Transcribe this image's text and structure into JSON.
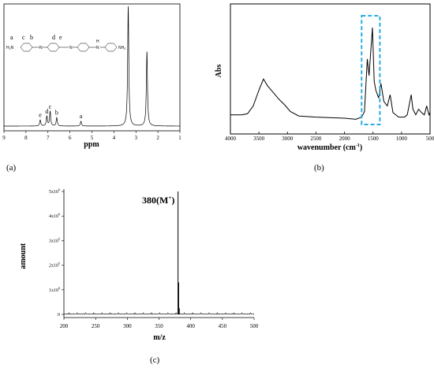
{
  "chart_data": [
    {
      "panel": "(a)",
      "type": "line",
      "xlabel": "ppm",
      "ylabel": "",
      "xlim": [
        9,
        1
      ],
      "x_reversed": true,
      "x_ticks": [
        "9",
        "8",
        "7",
        "6",
        "5",
        "4",
        "3",
        "2",
        "1"
      ],
      "peaks": [
        {
          "ppm": 7.35,
          "height": 0.05,
          "label": "e"
        },
        {
          "ppm": 7.05,
          "height": 0.08,
          "label": "d"
        },
        {
          "ppm": 6.9,
          "height": 0.12,
          "label": "c"
        },
        {
          "ppm": 6.6,
          "height": 0.07,
          "label": "b"
        },
        {
          "ppm": 5.5,
          "height": 0.04,
          "label": "a"
        },
        {
          "ppm": 3.35,
          "height": 1.0,
          "label": ""
        },
        {
          "ppm": 2.5,
          "height": 0.62,
          "label": ""
        }
      ],
      "structure": {
        "proton_labels": [
          "a",
          "c",
          "b",
          "d",
          "e"
        ],
        "atoms": [
          "H",
          "N",
          "N",
          "N",
          "H",
          "N",
          "NH",
          "NH"
        ],
        "subscripts": [
          "2",
          "2"
        ]
      }
    },
    {
      "panel": "(b)",
      "type": "line",
      "xlabel": "wavenumber (cm",
      "xlabel_sup": "-1",
      "xlabel_end": ")",
      "ylabel": "Abs",
      "xlim": [
        4000,
        500
      ],
      "x_reversed": true,
      "x_ticks": [
        "4000",
        "3500",
        "3000",
        "2500",
        "2000",
        "1500",
        "1000",
        "500"
      ],
      "spectrum": [
        [
          4000,
          0.2
        ],
        [
          3800,
          0.2
        ],
        [
          3700,
          0.21
        ],
        [
          3600,
          0.28
        ],
        [
          3500,
          0.42
        ],
        [
          3420,
          0.52
        ],
        [
          3350,
          0.46
        ],
        [
          3250,
          0.4
        ],
        [
          3150,
          0.34
        ],
        [
          3050,
          0.29
        ],
        [
          2950,
          0.23
        ],
        [
          2800,
          0.19
        ],
        [
          2500,
          0.18
        ],
        [
          2000,
          0.17
        ],
        [
          1800,
          0.16
        ],
        [
          1700,
          0.18
        ],
        [
          1650,
          0.23
        ],
        [
          1600,
          0.7
        ],
        [
          1570,
          0.55
        ],
        [
          1510,
          0.98
        ],
        [
          1480,
          0.5
        ],
        [
          1450,
          0.42
        ],
        [
          1400,
          0.35
        ],
        [
          1360,
          0.48
        ],
        [
          1310,
          0.32
        ],
        [
          1250,
          0.28
        ],
        [
          1200,
          0.38
        ],
        [
          1150,
          0.22
        ],
        [
          1050,
          0.18
        ],
        [
          950,
          0.18
        ],
        [
          900,
          0.2
        ],
        [
          830,
          0.38
        ],
        [
          800,
          0.25
        ],
        [
          750,
          0.2
        ],
        [
          700,
          0.25
        ],
        [
          650,
          0.22
        ],
        [
          600,
          0.2
        ],
        [
          560,
          0.28
        ],
        [
          520,
          0.2
        ],
        [
          500,
          0.22
        ]
      ],
      "highlight_range": [
        1700,
        1380
      ],
      "highlight_color": "#29abe2"
    },
    {
      "panel": "(c)",
      "type": "line",
      "xlabel": "m/z",
      "ylabel": "amount",
      "xlim": [
        200,
        500
      ],
      "ylim": [
        0,
        5000000
      ],
      "x_ticks": [
        "200",
        "250",
        "300",
        "350",
        "400",
        "450",
        "500"
      ],
      "y_ticks": [
        {
          "mant": "0",
          "exp": ""
        },
        {
          "mant": "1x10",
          "exp": "6"
        },
        {
          "mant": "2x10",
          "exp": "6"
        },
        {
          "mant": "3x10",
          "exp": "6"
        },
        {
          "mant": "4x10",
          "exp": "6"
        },
        {
          "mant": "5x10",
          "exp": "6"
        }
      ],
      "peaks": [
        {
          "mz": 380,
          "amount": 5000000
        },
        {
          "mz": 381,
          "amount": 1300000
        },
        {
          "mz": 382,
          "amount": 250000
        }
      ],
      "annotation": {
        "text": "380(M",
        "sup": "+",
        "end": ")"
      }
    }
  ]
}
